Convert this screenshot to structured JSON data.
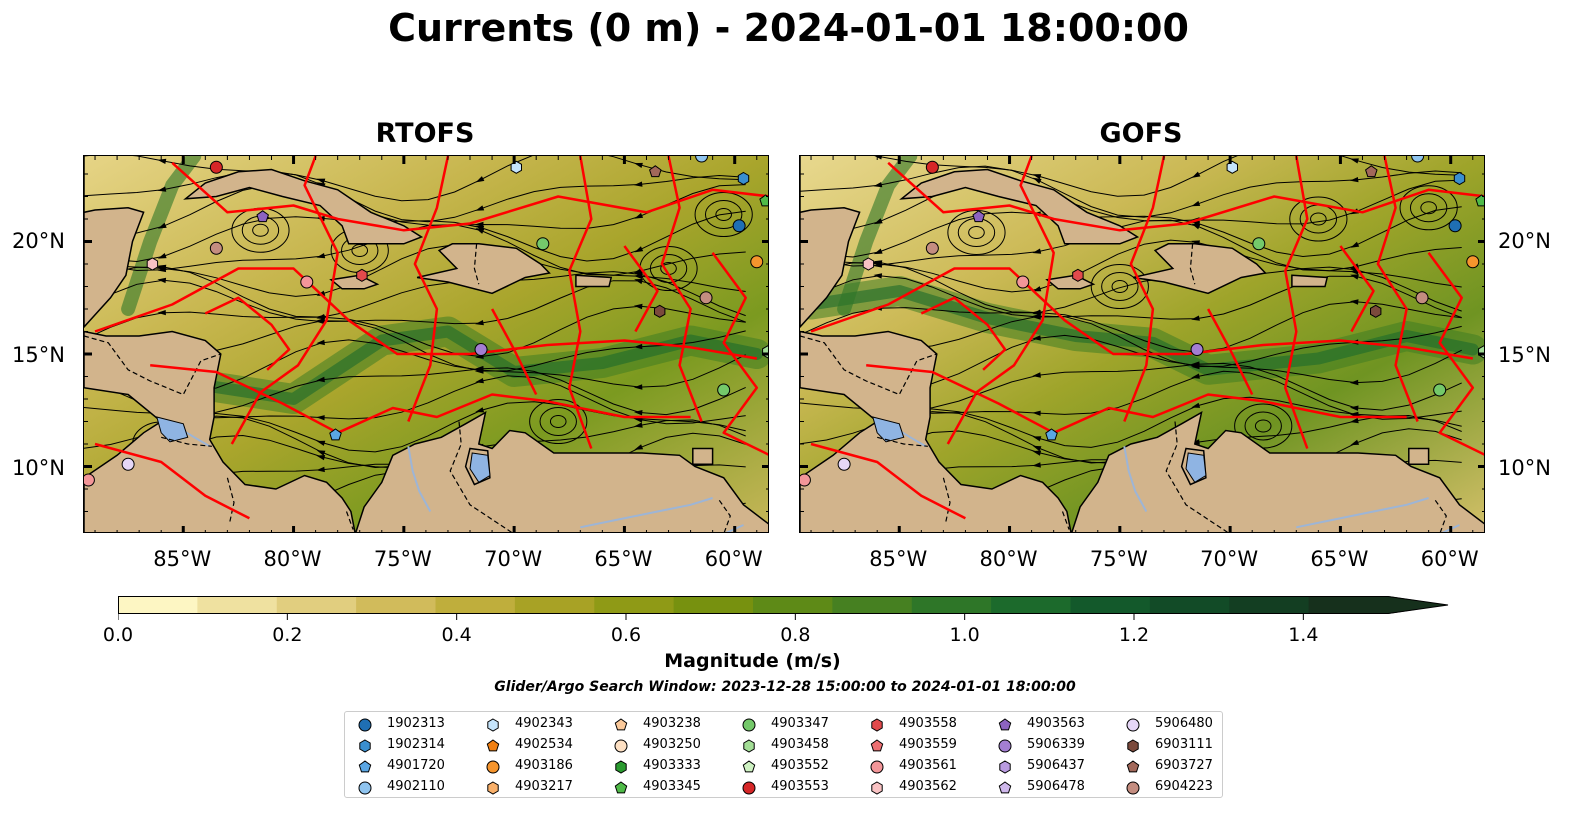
{
  "title": "Currents (0 m) - 2024-01-01 18:00:00",
  "panels": [
    {
      "title": "RTOFS"
    },
    {
      "title": "GOFS"
    }
  ],
  "map": {
    "lon_ticks": [
      "85°W",
      "80°W",
      "75°W",
      "70°W",
      "65°W",
      "60°W"
    ],
    "lon_tick_values": [
      -85,
      -80,
      -75,
      -70,
      -65,
      -60
    ],
    "lat_ticks": [
      "20°N",
      "15°N",
      "10°N"
    ],
    "lat_tick_values": [
      20,
      15,
      10
    ],
    "lon_range": [
      -89.5,
      -58.4
    ],
    "lat_range": [
      7.0,
      23.8
    ],
    "land_color": "#d2b48c",
    "boundary_color": "#ff0000"
  },
  "colorbar": {
    "label": "Magnitude (m/s)",
    "ticks": [
      "0.0",
      "0.2",
      "0.4",
      "0.6",
      "0.8",
      "1.0",
      "1.2",
      "1.4"
    ],
    "tick_values": [
      0.0,
      0.2,
      0.4,
      0.6,
      0.8,
      1.0,
      1.2,
      1.4
    ],
    "range": [
      0,
      1.5
    ],
    "extend": "max",
    "colors": [
      "#fdf6c3",
      "#efe1a0",
      "#e1ce7f",
      "#d1bb5b",
      "#bfae3c",
      "#a8a225",
      "#8f9a16",
      "#77910f",
      "#5e8a17",
      "#468021",
      "#2e7628",
      "#1c6a2c",
      "#13592b",
      "#124b27",
      "#133e22",
      "#16301c"
    ]
  },
  "search_window": "Glider/Argo Search Window: 2023-12-28 15:00:00 to 2024-01-01 18:00:00",
  "legend": [
    {
      "id": "1902313",
      "marker": "circle",
      "color": "#1f6fb4"
    },
    {
      "id": "1902314",
      "marker": "hexagon",
      "color": "#3a8fd0"
    },
    {
      "id": "4901720",
      "marker": "pentagon",
      "color": "#5ba6e3"
    },
    {
      "id": "4902110",
      "marker": "circle",
      "color": "#8fc4ef"
    },
    {
      "id": "4902343",
      "marker": "hexagon",
      "color": "#c5e4fb"
    },
    {
      "id": "4902534",
      "marker": "pentagon",
      "color": "#f07f12"
    },
    {
      "id": "4903186",
      "marker": "circle",
      "color": "#f6952d"
    },
    {
      "id": "4903217",
      "marker": "hexagon",
      "color": "#f9b06a"
    },
    {
      "id": "4903238",
      "marker": "pentagon",
      "color": "#fbc99a"
    },
    {
      "id": "4903250",
      "marker": "circle",
      "color": "#fde0c3"
    },
    {
      "id": "4903333",
      "marker": "hexagon",
      "color": "#2a9a2f"
    },
    {
      "id": "4903345",
      "marker": "pentagon",
      "color": "#4fba48"
    },
    {
      "id": "4903347",
      "marker": "circle",
      "color": "#74c96a"
    },
    {
      "id": "4903458",
      "marker": "hexagon",
      "color": "#a3de96"
    },
    {
      "id": "4903552",
      "marker": "pentagon",
      "color": "#cef2c2"
    },
    {
      "id": "4903553",
      "marker": "circle",
      "color": "#d62728"
    },
    {
      "id": "4903558",
      "marker": "hexagon",
      "color": "#e24a4c"
    },
    {
      "id": "4903559",
      "marker": "pentagon",
      "color": "#ec6f72"
    },
    {
      "id": "4903561",
      "marker": "circle",
      "color": "#f39699"
    },
    {
      "id": "4903562",
      "marker": "hexagon",
      "color": "#f9c2c3"
    },
    {
      "id": "4903563",
      "marker": "pentagon",
      "color": "#8c63c1"
    },
    {
      "id": "5906339",
      "marker": "circle",
      "color": "#a37ed2"
    },
    {
      "id": "5906437",
      "marker": "hexagon",
      "color": "#b99be0"
    },
    {
      "id": "5906478",
      "marker": "pentagon",
      "color": "#cfb8ec"
    },
    {
      "id": "5906480",
      "marker": "circle",
      "color": "#e6d7f7"
    },
    {
      "id": "6903111",
      "marker": "hexagon",
      "color": "#7b4a3c"
    },
    {
      "id": "6903727",
      "marker": "pentagon",
      "color": "#a2685a"
    },
    {
      "id": "6904223",
      "marker": "circle",
      "color": "#c48d80"
    }
  ],
  "floats": [
    {
      "id": "4903553",
      "lon": -83.5,
      "lat": 23.3
    },
    {
      "id": "4902343",
      "lon": -69.9,
      "lat": 23.3
    },
    {
      "id": "4902110",
      "lon": -61.5,
      "lat": 23.8
    },
    {
      "id": "6903727",
      "lon": -63.6,
      "lat": 23.1
    },
    {
      "id": "1902314",
      "lon": -59.6,
      "lat": 22.8
    },
    {
      "id": "4903345",
      "lon": -58.6,
      "lat": 21.8
    },
    {
      "id": "4903563",
      "lon": -81.4,
      "lat": 21.1
    },
    {
      "id": "1902313",
      "lon": -59.8,
      "lat": 20.7
    },
    {
      "id": "4903347",
      "lon": -68.7,
      "lat": 19.9
    },
    {
      "id": "6904223",
      "lon": -83.5,
      "lat": 19.7
    },
    {
      "id": "4903562",
      "lon": -86.4,
      "lat": 19.0
    },
    {
      "id": "4903558",
      "lon": -76.9,
      "lat": 18.5
    },
    {
      "id": "4903561",
      "lon": -79.4,
      "lat": 18.2
    },
    {
      "id": "6904223",
      "lon": -61.3,
      "lat": 17.5
    },
    {
      "id": "6903111",
      "lon": -63.4,
      "lat": 16.9
    },
    {
      "id": "5906339",
      "lon": -71.5,
      "lat": 15.2
    },
    {
      "id": "4903458",
      "lon": -58.5,
      "lat": 15.1
    },
    {
      "id": "4903347",
      "lon": -60.5,
      "lat": 13.4
    },
    {
      "id": "4901720",
      "lon": -78.1,
      "lat": 11.4
    },
    {
      "id": "5906480",
      "lon": -87.5,
      "lat": 10.1
    },
    {
      "id": "4903561",
      "lon": -89.3,
      "lat": 9.4
    },
    {
      "id": "4903186",
      "lon": -59.0,
      "lat": 19.1
    }
  ]
}
